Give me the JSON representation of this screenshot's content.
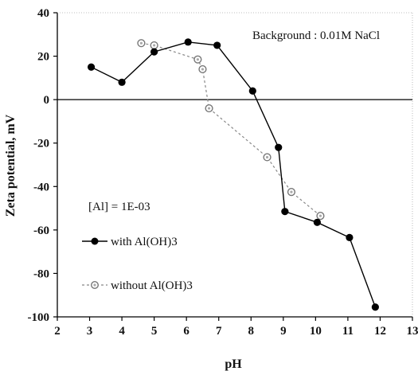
{
  "chart_data": {
    "type": "line",
    "xlabel": "pH",
    "ylabel": "Zeta potential, mV",
    "xlim": [
      2,
      13
    ],
    "ylim": [
      -100,
      40
    ],
    "xticks": [
      "2",
      "3",
      "4",
      "5",
      "6",
      "7",
      "8",
      "9",
      "10",
      "11",
      "12",
      "13"
    ],
    "yticks": [
      "40",
      "20",
      "0",
      "-20",
      "-40",
      "-60",
      "-80",
      "-100"
    ],
    "annotations": {
      "background": "Background : 0.01M NaCl",
      "al_conc": "[Al] = 1E-03"
    },
    "legend_position": "lower-left",
    "grid": false,
    "series": [
      {
        "name": "with Al(OH)3",
        "style": "solid",
        "marker": "filled-circle",
        "color": "#000000",
        "x": [
          3.05,
          4.0,
          5.0,
          6.05,
          6.95,
          8.05,
          8.85,
          9.05,
          10.05,
          11.05,
          11.85
        ],
        "y": [
          15,
          8,
          22,
          26.5,
          25,
          4,
          -22,
          -51.5,
          -56.5,
          -63.5,
          -95.5
        ]
      },
      {
        "name": "without Al(OH)3",
        "style": "dashed",
        "marker": "open-circle",
        "color": "#888888",
        "x": [
          4.6,
          5.0,
          6.35,
          6.5,
          6.7,
          8.5,
          9.25,
          10.15
        ],
        "y": [
          26,
          25,
          18.5,
          14,
          -4,
          -26.5,
          -42.5,
          -53.5
        ]
      }
    ]
  }
}
